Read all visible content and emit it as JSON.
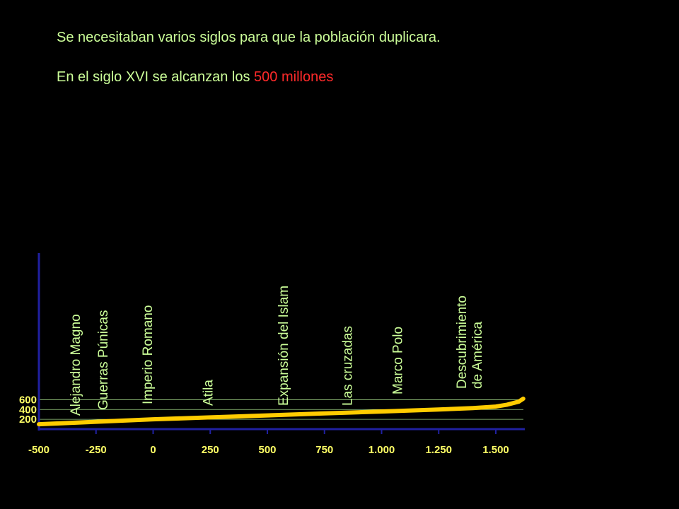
{
  "header": {
    "line1": "Se necesitaban varios siglos para que la población duplicara.",
    "line2_prefix": "En el siglo XVI se alcanzan los ",
    "line2_highlight": "500 millones"
  },
  "colors": {
    "background": "#000000",
    "text": "#ccff99",
    "highlight": "#ff2a2a",
    "tick_labels": "#ffff66",
    "axis": "#2020a0",
    "curve": "#ffcc00",
    "gridline": "#9acd80"
  },
  "chart_data": {
    "type": "line",
    "title": "",
    "xlabel": "",
    "ylabel": "",
    "xlim": [
      -500,
      1620
    ],
    "ylim": [
      0,
      1100
    ],
    "x_ticks": [
      -500,
      -250,
      0,
      250,
      500,
      750,
      1000,
      1250,
      1500
    ],
    "x_tick_labels": [
      "-500",
      "-250",
      "0",
      "250",
      "500",
      "750",
      "1.000",
      "1.250",
      "1.500"
    ],
    "y_ticks": [
      200,
      400,
      600
    ],
    "y_tick_labels": [
      "200",
      "400",
      "600"
    ],
    "grid": "horizontal lines at y ticks",
    "series": [
      {
        "x": [
          -500,
          -250,
          0,
          250,
          500,
          750,
          1000,
          1250,
          1400,
          1500,
          1550,
          1600,
          1620
        ],
        "values": [
          100,
          150,
          200,
          240,
          280,
          320,
          360,
          400,
          430,
          460,
          500,
          560,
          620
        ]
      }
    ],
    "annotations": [
      {
        "text": "Alejandro Magno",
        "x": -320
      },
      {
        "text": "Guerras Púnicas",
        "x": -200
      },
      {
        "text": "Imperio Romano",
        "x": -5
      },
      {
        "text": "Atila",
        "x": 260
      },
      {
        "text": "Expansión del Islam",
        "x": 590
      },
      {
        "text": "Las cruzadas",
        "x": 870
      },
      {
        "text": "Marco Polo",
        "x": 1090
      },
      {
        "text": "Descubrimiento",
        "text2": "de América",
        "x": 1370
      }
    ]
  }
}
